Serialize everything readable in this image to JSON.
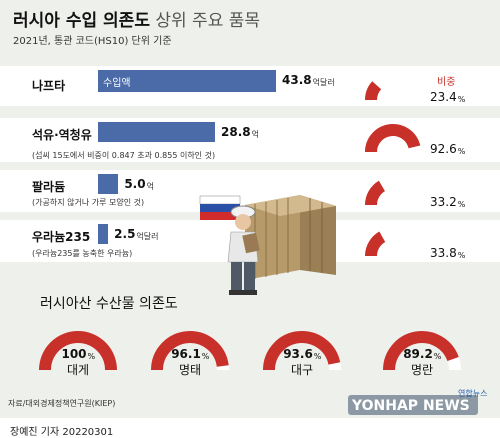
{
  "title": {
    "bold": "러시아 수입 의존도",
    "rest": "상위 주요 품목"
  },
  "subtitle": "2021년, 통관 코드(HS10) 단위 기준",
  "share_label": "비중",
  "import_label": "수입액",
  "chart_data": [
    {
      "type": "bar",
      "title": "러시아 수입 의존도 상위 주요 품목",
      "subtitle": "2021년, 통관 코드(HS10) 단위 기준",
      "series": [
        {
          "name": "수입액",
          "values": [
            43.8,
            28.8,
            5.0,
            2.5
          ]
        }
      ],
      "categories": [
        "나프타",
        "석유·역청유",
        "팔라듐",
        "우라늄235"
      ],
      "value_labels": [
        "43.8",
        "28.8",
        "5.0",
        "2.5"
      ],
      "units": [
        "억달러",
        "억",
        "억",
        "억달러"
      ],
      "notes": [
        "",
        "(섭씨 15도에서 비중이 0.847 초과 0.855 이하인 것)",
        "(가공하지 않거나 가루 모양인 것)",
        "(우라늄235를 농축한 우라늄)"
      ],
      "share_name": "비중",
      "share_percent": [
        23.4,
        92.6,
        33.2,
        33.8
      ],
      "share_labels": [
        "23.4",
        "92.6",
        "33.2",
        "33.8"
      ]
    },
    {
      "type": "pie",
      "title": "러시아산 수산물 의존도",
      "categories": [
        "대게",
        "명태",
        "대구",
        "명란"
      ],
      "values": [
        100,
        96.1,
        93.6,
        89.2
      ],
      "value_labels": [
        "100",
        "96.1",
        "93.6",
        "89.2"
      ]
    }
  ],
  "colors": {
    "accent": "#c8302a",
    "bar": "#4a6aa8",
    "background": "#eef0ec"
  },
  "source": "자료/대외경제정책연구원(KIEP)",
  "logo": "YONHAP NEWS",
  "logo_small": "연합뉴스",
  "credit": "장예진 기자  20220301"
}
